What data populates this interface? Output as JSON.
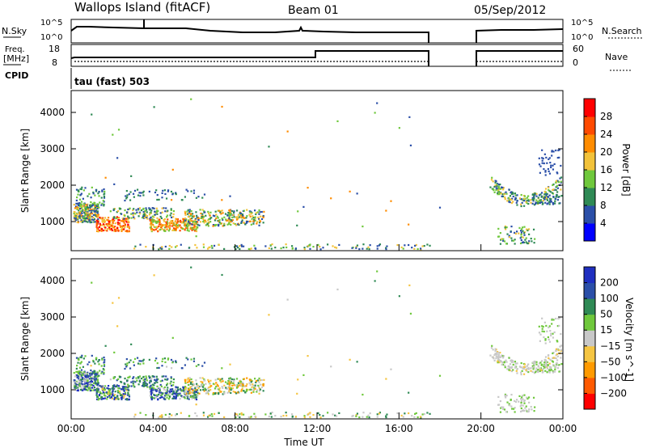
{
  "header": {
    "title": "Wallops Island (fitACF)",
    "beam": "Beam 01",
    "date": "05/Sep/2012"
  },
  "panels": {
    "nsky_label": "N.Sky",
    "nsky_ticks": [
      "10^5",
      "10^0"
    ],
    "nsearch_label": "N.Search",
    "nsearch_ticks": [
      "10^5",
      "10^0"
    ],
    "freq_label": "Freq.",
    "freq_unit": "[MHz]",
    "freq_ticks": [
      "18",
      "8"
    ],
    "nave_label": "Nave",
    "nave_ticks": [
      "60",
      "0"
    ],
    "cpid_label": "CPID",
    "cpid_text": "tau (fast) 503"
  },
  "chart_data": [
    {
      "type": "heatmap",
      "name": "power",
      "ylabel": "Slant Range [km]",
      "xlabel": "",
      "ylim": [
        200,
        4600
      ],
      "y_ticks": [
        "1000",
        "2000",
        "3000",
        "4000"
      ],
      "colorbar": {
        "label": "Power [dB]",
        "ticks": [
          "28",
          "24",
          "20",
          "16",
          "12",
          "8",
          "4"
        ],
        "colors": [
          "#0000ff",
          "#2b4fa8",
          "#2f8a55",
          "#6fc83c",
          "#f2c23a",
          "#ff8c00",
          "#ff4a00",
          "#ff0000"
        ]
      },
      "features": [
        {
          "start_h": 0.1,
          "end_h": 9.5,
          "range_km": [
            700,
            1900
          ],
          "level": "high",
          "description": "evening-to-morning backscatter band"
        },
        {
          "start_h": 20.3,
          "end_h": 23.9,
          "range_km": [
            1400,
            3000
          ],
          "level": "medium",
          "description": "late-day echoes with curved trace"
        },
        {
          "start_h": 21.0,
          "end_h": 22.5,
          "range_km": [
            400,
            900
          ],
          "level": "medium",
          "description": "near-range late-day echoes"
        }
      ]
    },
    {
      "type": "heatmap",
      "name": "velocity",
      "ylabel": "Slant Range [km]",
      "xlabel": "Time UT",
      "x_ticks": [
        "00:00",
        "04:00",
        "08:00",
        "12:00",
        "16:00",
        "20:00",
        "00:00"
      ],
      "ylim": [
        200,
        4600
      ],
      "y_ticks": [
        "1000",
        "2000",
        "3000",
        "4000"
      ],
      "colorbar": {
        "label": "Velocity [m s^-1]",
        "ticks": [
          "200",
          "100",
          "50",
          "15",
          "−15",
          "−50",
          "−100",
          "−200"
        ],
        "colors": [
          "#ff0000",
          "#ff5a00",
          "#ff9a00",
          "#f5c542",
          "#c8c8c8",
          "#6fc83c",
          "#2f8a55",
          "#2b4fa8",
          "#1f2fc0"
        ]
      }
    }
  ],
  "colors": {
    "background": "#ffffff",
    "axes": "#000000"
  }
}
